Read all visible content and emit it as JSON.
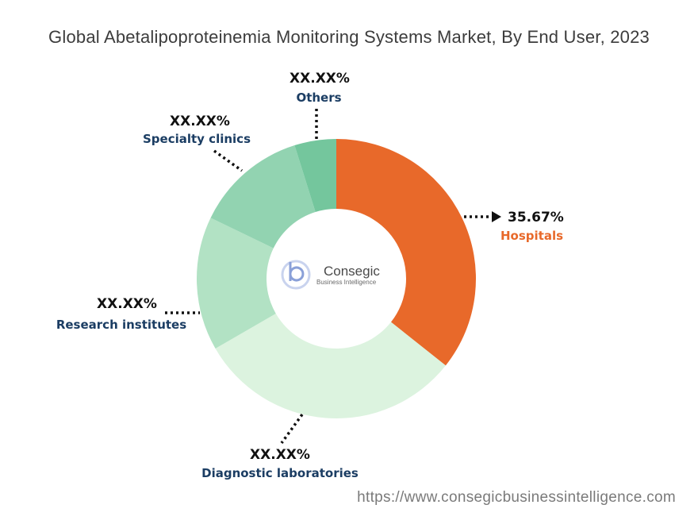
{
  "title": "Global Abetalipoproteinemia Monitoring Systems Market, By End User, 2023",
  "watermark": {
    "name": "Consegic",
    "subtitle": "Business Intelligence"
  },
  "source_url": "https://www.consegicbusinessintelligence.com",
  "chart_data": {
    "type": "pie",
    "donut": true,
    "categories": [
      "Hospitals",
      "Diagnostic laboratories",
      "Research institutes",
      "Specialty clinics",
      "Others"
    ],
    "values": [
      35.67,
      31.0,
      15.5,
      13.0,
      4.83
    ],
    "value_labels": [
      "35.67%",
      "XX.XX%",
      "XX.XX%",
      "XX.XX%",
      "XX.XX%"
    ],
    "colors": [
      "#e8692a",
      "#dcf3df",
      "#b2e2c4",
      "#92d3b1",
      "#74c69d"
    ],
    "label_colors": [
      "#e8692a",
      "#1b3d63",
      "#1b3d63",
      "#1b3d63",
      "#1b3d63"
    ],
    "start_angle_deg": 0,
    "direction": "clockwise"
  }
}
